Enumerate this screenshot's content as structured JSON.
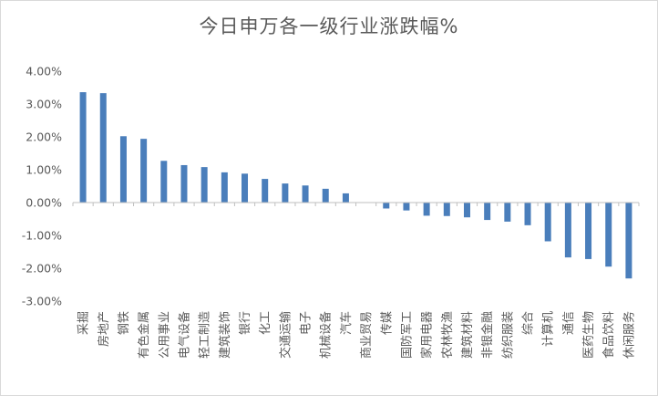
{
  "chart_data": {
    "type": "bar",
    "title": "今日申万各一级行业涨跌幅%",
    "xlabel": "",
    "ylabel": "",
    "ylim": [
      -3,
      4
    ],
    "yticks": [
      4,
      3,
      2,
      1,
      0,
      -1,
      -2,
      -3
    ],
    "ytick_labels": [
      "4.00%",
      "3.00%",
      "2.00%",
      "1.00%",
      "0.00%",
      "-1.00%",
      "-2.00%",
      "-3.00%"
    ],
    "grid": false,
    "legend": "none",
    "bar_color": "#4a7ebb",
    "categories": [
      "采掘",
      "房地产",
      "钢铁",
      "有色金属",
      "公用事业",
      "电气设备",
      "轻工制造",
      "建筑装饰",
      "银行",
      "化工",
      "交通运输",
      "电子",
      "机械设备",
      "汽车",
      "商业贸易",
      "传媒",
      "国防军工",
      "家用电器",
      "农林牧渔",
      "建筑材料",
      "非银金融",
      "纺织服装",
      "综合",
      "计算机",
      "通信",
      "医药生物",
      "食品饮料",
      "休闲服务"
    ],
    "values": [
      3.36,
      3.33,
      2.02,
      1.94,
      1.27,
      1.14,
      1.08,
      0.92,
      0.88,
      0.72,
      0.58,
      0.52,
      0.42,
      0.28,
      0.0,
      -0.18,
      -0.24,
      -0.4,
      -0.41,
      -0.45,
      -0.53,
      -0.58,
      -0.69,
      -1.18,
      -1.67,
      -1.72,
      -1.95,
      -2.31
    ]
  }
}
